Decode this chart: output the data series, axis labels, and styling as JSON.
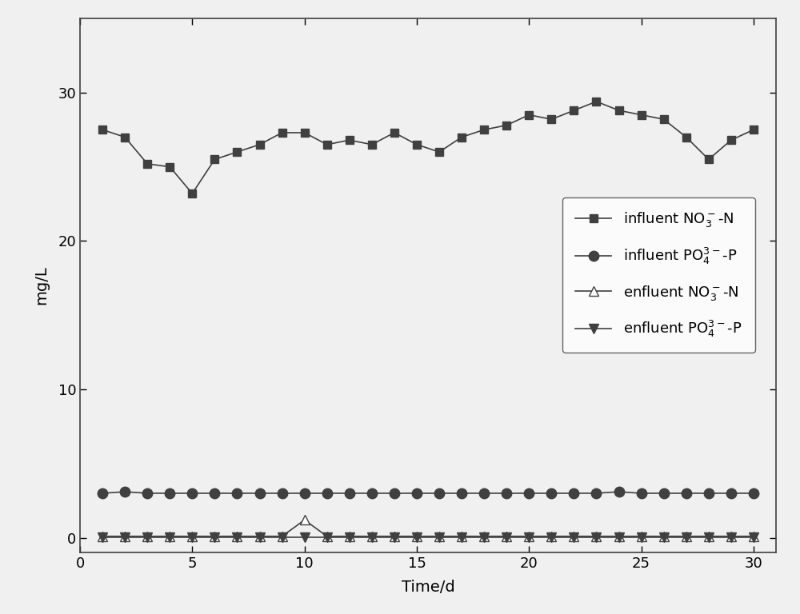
{
  "influent_NO3_x": [
    1,
    2,
    3,
    4,
    5,
    6,
    7,
    8,
    9,
    10,
    11,
    12,
    13,
    14,
    15,
    16,
    17,
    18,
    19,
    20,
    21,
    22,
    23,
    24,
    25,
    26,
    27,
    28,
    29,
    30
  ],
  "influent_NO3_y": [
    27.5,
    27.0,
    25.2,
    25.0,
    23.2,
    25.5,
    26.0,
    26.5,
    27.3,
    27.3,
    26.5,
    26.8,
    26.5,
    27.3,
    26.5,
    26.0,
    27.0,
    27.5,
    27.8,
    28.5,
    28.2,
    28.8,
    29.4,
    28.8,
    28.5,
    28.2,
    27.0,
    25.5,
    26.8,
    27.5
  ],
  "influent_PO4_x": [
    1,
    2,
    3,
    4,
    5,
    6,
    7,
    8,
    9,
    10,
    11,
    12,
    13,
    14,
    15,
    16,
    17,
    18,
    19,
    20,
    21,
    22,
    23,
    24,
    25,
    26,
    27,
    28,
    29,
    30
  ],
  "influent_PO4_y": [
    3.0,
    3.1,
    3.0,
    3.0,
    3.0,
    3.0,
    3.0,
    3.0,
    3.0,
    3.0,
    3.0,
    3.0,
    3.0,
    3.0,
    3.0,
    3.0,
    3.0,
    3.0,
    3.0,
    3.0,
    3.0,
    3.0,
    3.0,
    3.1,
    3.0,
    3.0,
    3.0,
    3.0,
    3.0,
    3.0
  ],
  "effluent_NO3_x": [
    1,
    2,
    3,
    4,
    5,
    6,
    7,
    8,
    9,
    10,
    11,
    12,
    13,
    14,
    15,
    16,
    17,
    18,
    19,
    20,
    21,
    22,
    23,
    24,
    25,
    26,
    27,
    28,
    29,
    30
  ],
  "effluent_NO3_y": [
    0.1,
    0.1,
    0.1,
    0.1,
    0.1,
    0.1,
    0.1,
    0.1,
    0.1,
    1.2,
    0.1,
    0.1,
    0.1,
    0.1,
    0.1,
    0.1,
    0.1,
    0.1,
    0.1,
    0.1,
    0.1,
    0.1,
    0.1,
    0.1,
    0.1,
    0.1,
    0.1,
    0.1,
    0.1,
    0.1
  ],
  "effluent_PO4_x": [
    1,
    2,
    3,
    4,
    5,
    6,
    7,
    8,
    9,
    10,
    11,
    12,
    13,
    14,
    15,
    16,
    17,
    18,
    19,
    20,
    21,
    22,
    23,
    24,
    25,
    26,
    27,
    28,
    29,
    30
  ],
  "effluent_PO4_y": [
    0.05,
    0.05,
    0.05,
    0.05,
    0.05,
    0.05,
    0.05,
    0.05,
    0.05,
    0.05,
    0.05,
    0.05,
    0.05,
    0.05,
    0.05,
    0.05,
    0.05,
    0.05,
    0.05,
    0.05,
    0.05,
    0.05,
    0.05,
    0.05,
    0.05,
    0.05,
    0.05,
    0.05,
    0.05,
    0.05
  ],
  "xlabel": "Time/d",
  "ylabel": "mg/L",
  "xlim": [
    0,
    31
  ],
  "ylim": [
    -1,
    35
  ],
  "xticks": [
    0,
    5,
    10,
    15,
    20,
    25,
    30
  ],
  "yticks": [
    0,
    10,
    20,
    30
  ],
  "line_color": "#404040",
  "background_color": "#f0f0f0",
  "legend_labels": [
    "influent NO$_3^-$-N",
    "influent PO$_4^{3-}$-P",
    "enfluent NO$_3^-$-N",
    "enfluent PO$_4^{3-}$-P"
  ],
  "marker_size_sq": 7,
  "marker_size_circ": 9,
  "marker_size_tri": 9,
  "font_size": 14,
  "tick_font_size": 13,
  "legend_font_size": 13
}
